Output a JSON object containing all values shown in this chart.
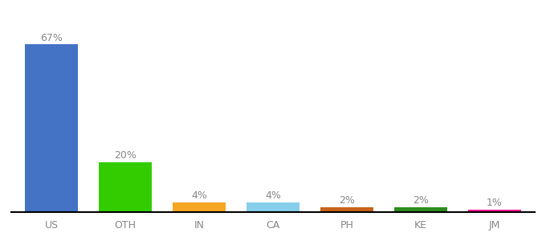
{
  "categories": [
    "US",
    "OTH",
    "IN",
    "CA",
    "PH",
    "KE",
    "JM"
  ],
  "values": [
    67,
    20,
    4,
    4,
    2,
    2,
    1
  ],
  "labels": [
    "67%",
    "20%",
    "4%",
    "4%",
    "2%",
    "2%",
    "1%"
  ],
  "bar_colors": [
    "#4472c4",
    "#33cc00",
    "#f5a623",
    "#87ceeb",
    "#c8621a",
    "#2e8b20",
    "#ff1493"
  ],
  "background_color": "#ffffff",
  "label_color": "#888888",
  "label_fontsize": 9,
  "tick_fontsize": 9,
  "ylim": [
    0,
    78
  ],
  "bar_width": 0.72
}
